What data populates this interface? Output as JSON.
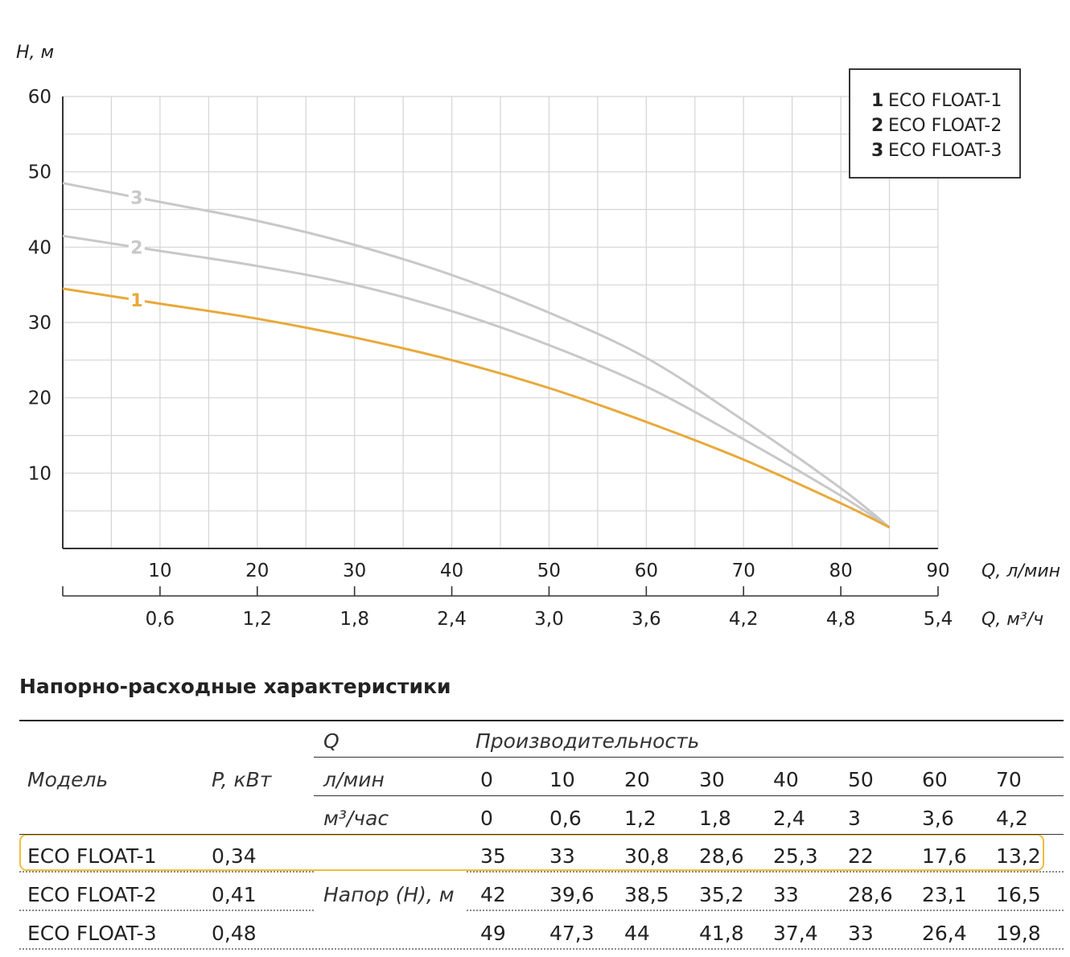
{
  "chart_data": {
    "type": "line",
    "ylabel": "H, м",
    "xlabel": "Q, л/мин",
    "xlabel2": "Q, м³/ч",
    "xlim": [
      0,
      90
    ],
    "ylim": [
      0,
      60
    ],
    "yticks": [
      10,
      20,
      30,
      40,
      50,
      60
    ],
    "xticks": [
      10,
      20,
      30,
      40,
      50,
      60,
      70,
      80,
      90
    ],
    "xticks2": [
      "0,6",
      "1,2",
      "1,8",
      "2,4",
      "3,0",
      "3,6",
      "4,2",
      "4,8",
      "5,4"
    ],
    "grid": true,
    "legend_position": "top-right",
    "series": [
      {
        "name": "ECO FLOAT-1",
        "label": "1",
        "color": "#e8a93a",
        "x": [
          0,
          10,
          20,
          30,
          40,
          50,
          60,
          70,
          80,
          85
        ],
        "y": [
          34.5,
          32.5,
          30.5,
          28.0,
          25.0,
          21.3,
          16.8,
          11.8,
          6.0,
          2.8
        ]
      },
      {
        "name": "ECO FLOAT-2",
        "label": "2",
        "color": "#c8c8c8",
        "x": [
          0,
          10,
          20,
          30,
          40,
          50,
          60,
          70,
          80,
          85
        ],
        "y": [
          41.5,
          39.5,
          37.5,
          35.0,
          31.5,
          27.0,
          21.5,
          14.5,
          7.0,
          2.8
        ]
      },
      {
        "name": "ECO FLOAT-3",
        "label": "3",
        "color": "#c8c8c8",
        "x": [
          0,
          10,
          20,
          30,
          40,
          50,
          60,
          70,
          80,
          85
        ],
        "y": [
          48.5,
          46.0,
          43.5,
          40.3,
          36.3,
          31.3,
          25.3,
          17.0,
          8.0,
          2.8
        ]
      }
    ]
  },
  "table": {
    "title": "Напорно-расходные характеристики",
    "q_label": "Q",
    "perf_label": "Производительность",
    "model_label": "Модель",
    "power_label": "P, кВт",
    "lmin_label": "л/мин",
    "m3_label": "м³/час",
    "head_label": "Напор (H), м",
    "lmin": [
      "0",
      "10",
      "20",
      "30",
      "40",
      "50",
      "60",
      "70"
    ],
    "m3h": [
      "0",
      "0,6",
      "1,2",
      "1,8",
      "2,4",
      "3",
      "3,6",
      "4,2"
    ],
    "rows": [
      {
        "model": "ECO FLOAT-1",
        "power": "0,34",
        "values": [
          "35",
          "33",
          "30,8",
          "28,6",
          "25,3",
          "22",
          "17,6",
          "13,2"
        ]
      },
      {
        "model": "ECO FLOAT-2",
        "power": "0,41",
        "values": [
          "42",
          "39,6",
          "38,5",
          "35,2",
          "33",
          "28,6",
          "23,1",
          "16,5"
        ]
      },
      {
        "model": "ECO FLOAT-3",
        "power": "0,48",
        "values": [
          "49",
          "47,3",
          "44",
          "41,8",
          "37,4",
          "33",
          "26,4",
          "19,8"
        ]
      }
    ],
    "highlight_color": "#efbe3e"
  }
}
